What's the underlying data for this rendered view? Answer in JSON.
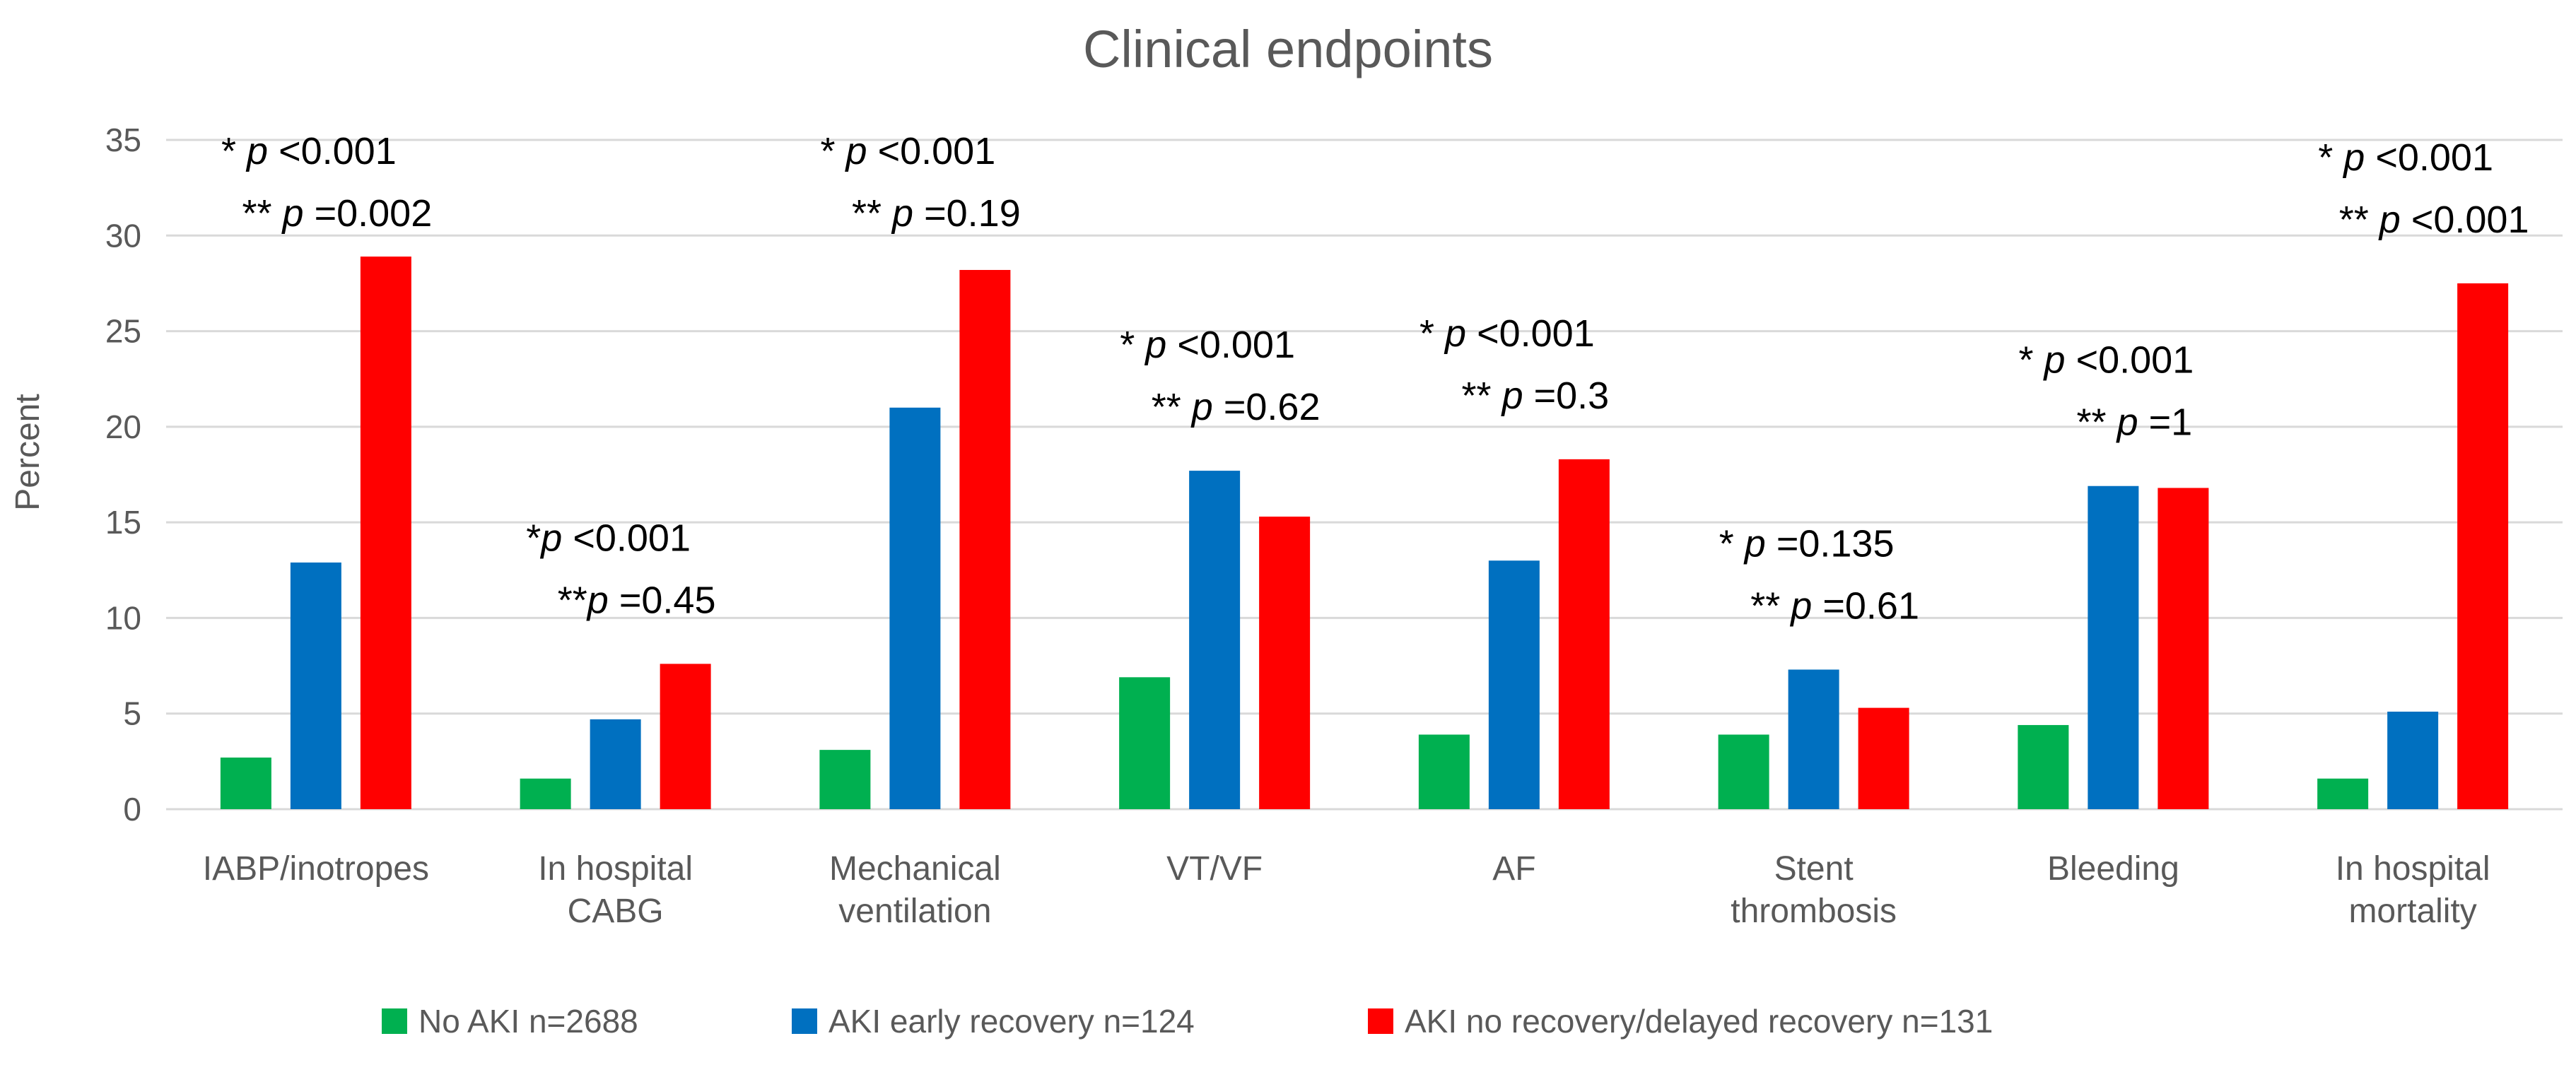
{
  "chart_data": {
    "type": "bar",
    "title": "Clinical endpoints",
    "xlabel": "",
    "ylabel": "Percent",
    "ylim": [
      0,
      35
    ],
    "yticks": [
      0,
      5,
      10,
      15,
      20,
      25,
      30,
      35
    ],
    "grid": true,
    "legend_position": "bottom",
    "categories": [
      [
        "IABP/inotropes"
      ],
      [
        "In hospital",
        "CABG"
      ],
      [
        "Mechanical",
        "ventilation"
      ],
      [
        "VT/VF"
      ],
      [
        "AF"
      ],
      [
        "Stent",
        "thrombosis"
      ],
      [
        "Bleeding"
      ],
      [
        "In hospital",
        "mortality"
      ]
    ],
    "series": [
      {
        "name": "No AKI n=2688",
        "color": "#00b050",
        "values": [
          2.7,
          1.6,
          3.1,
          6.9,
          3.9,
          3.9,
          4.4,
          1.6
        ]
      },
      {
        "name": "AKI early recovery n=124",
        "color": "#0070c0",
        "values": [
          12.9,
          4.7,
          21.0,
          17.7,
          13.0,
          7.3,
          16.9,
          5.1
        ]
      },
      {
        "name": "AKI no recovery/delayed recovery n=131",
        "color": "#ff0000",
        "values": [
          28.9,
          7.6,
          28.2,
          15.3,
          18.3,
          5.3,
          16.8,
          27.5
        ]
      }
    ],
    "annotations": [
      {
        "line1": [
          "* ",
          "p",
          " <0.001"
        ],
        "line2": [
          "** ",
          "p",
          " =0.002"
        ]
      },
      {
        "line1": [
          "*",
          "p",
          " <0.001"
        ],
        "line2": [
          "**",
          "p",
          " =0.45"
        ]
      },
      {
        "line1": [
          "* ",
          "p",
          " <0.001"
        ],
        "line2": [
          "** ",
          "p",
          "  =0.19"
        ]
      },
      {
        "line1": [
          "* ",
          "p",
          " <0.001"
        ],
        "line2": [
          "** ",
          "p",
          " =0.62"
        ]
      },
      {
        "line1": [
          "* ",
          "p",
          " <0.001"
        ],
        "line2": [
          "** ",
          "p",
          " =0.3"
        ]
      },
      {
        "line1": [
          "* ",
          "p",
          " =0.135"
        ],
        "line2": [
          "** ",
          "p",
          "  =0.61"
        ]
      },
      {
        "line1": [
          "* ",
          "p",
          " <0.001"
        ],
        "line2": [
          "** ",
          "p",
          " =1"
        ]
      },
      {
        "line1": [
          "* ",
          "p",
          " <0.001"
        ],
        "line2": [
          "** ",
          "p",
          " <0.001"
        ]
      }
    ]
  }
}
